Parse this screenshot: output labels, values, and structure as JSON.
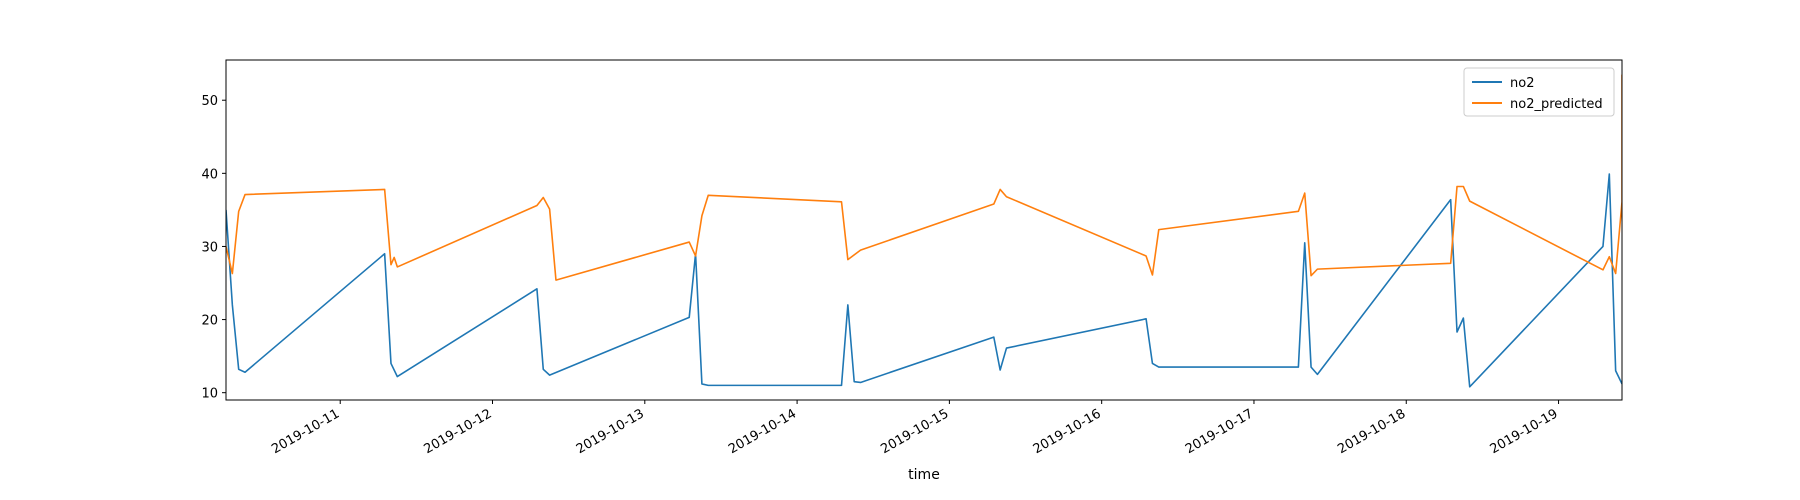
{
  "chart_data": {
    "type": "line",
    "title": "",
    "xlabel": "time",
    "ylabel": "",
    "x_is_date": true,
    "xlim": [
      "2019-10-10 06:00",
      "2019-10-19 10:00"
    ],
    "ylim": [
      9,
      55.5
    ],
    "y_ticks": [
      10,
      20,
      30,
      40,
      50
    ],
    "x_ticks": [
      "2019-10-11",
      "2019-10-12",
      "2019-10-13",
      "2019-10-14",
      "2019-10-15",
      "2019-10-16",
      "2019-10-17",
      "2019-10-18",
      "2019-10-19"
    ],
    "grid": false,
    "legend_position": "top-right",
    "series": [
      {
        "name": "no2",
        "color": "#1f77b4",
        "points": [
          [
            "2019-10-10 06:00",
            35
          ],
          [
            "2019-10-10 07:00",
            22
          ],
          [
            "2019-10-10 08:00",
            13.2
          ],
          [
            "2019-10-10 09:00",
            12.8
          ],
          [
            "2019-10-11 07:00",
            29
          ],
          [
            "2019-10-11 08:00",
            14
          ],
          [
            "2019-10-11 09:00",
            12.2
          ],
          [
            "2019-10-12 07:00",
            24.2
          ],
          [
            "2019-10-12 08:00",
            13.2
          ],
          [
            "2019-10-12 09:00",
            12.4
          ],
          [
            "2019-10-13 07:00",
            20.3
          ],
          [
            "2019-10-13 08:00",
            29
          ],
          [
            "2019-10-13 09:00",
            11.2
          ],
          [
            "2019-10-13 10:00",
            11
          ],
          [
            "2019-10-14 07:00",
            11
          ],
          [
            "2019-10-14 08:00",
            22
          ],
          [
            "2019-10-14 09:00",
            11.5
          ],
          [
            "2019-10-14 10:00",
            11.4
          ],
          [
            "2019-10-15 07:00",
            17.6
          ],
          [
            "2019-10-15 08:00",
            13.1
          ],
          [
            "2019-10-15 09:00",
            16.1
          ],
          [
            "2019-10-16 07:00",
            20.1
          ],
          [
            "2019-10-16 08:00",
            14
          ],
          [
            "2019-10-16 09:00",
            13.5
          ],
          [
            "2019-10-17 07:00",
            13.5
          ],
          [
            "2019-10-17 08:00",
            30.5
          ],
          [
            "2019-10-17 09:00",
            13.5
          ],
          [
            "2019-10-17 10:00",
            12.5
          ],
          [
            "2019-10-18 07:00",
            36.4
          ],
          [
            "2019-10-18 08:00",
            18.3
          ],
          [
            "2019-10-18 09:00",
            20.2
          ],
          [
            "2019-10-18 10:00",
            10.8
          ],
          [
            "2019-10-19 07:00",
            30
          ],
          [
            "2019-10-19 08:00",
            39.9
          ],
          [
            "2019-10-19 09:00",
            13
          ],
          [
            "2019-10-19 10:00",
            11.2
          ]
        ]
      },
      {
        "name": "no2_predicted",
        "color": "#ff7f0e",
        "points": [
          [
            "2019-10-10 06:00",
            30
          ],
          [
            "2019-10-10 07:00",
            26.3
          ],
          [
            "2019-10-10 08:00",
            34.8
          ],
          [
            "2019-10-10 09:00",
            37.1
          ],
          [
            "2019-10-11 07:00",
            37.8
          ],
          [
            "2019-10-11 08:00",
            27.5
          ],
          [
            "2019-10-11 08:30",
            28.5
          ],
          [
            "2019-10-11 09:00",
            27.2
          ],
          [
            "2019-10-12 07:00",
            35.6
          ],
          [
            "2019-10-12 08:00",
            36.7
          ],
          [
            "2019-10-12 09:00",
            35.1
          ],
          [
            "2019-10-12 10:00",
            25.4
          ],
          [
            "2019-10-13 07:00",
            30.6
          ],
          [
            "2019-10-13 08:00",
            28.7
          ],
          [
            "2019-10-13 09:00",
            34.2
          ],
          [
            "2019-10-13 10:00",
            37
          ],
          [
            "2019-10-14 07:00",
            36.1
          ],
          [
            "2019-10-14 08:00",
            28.2
          ],
          [
            "2019-10-14 10:00",
            29.5
          ],
          [
            "2019-10-15 07:00",
            35.8
          ],
          [
            "2019-10-15 08:00",
            37.8
          ],
          [
            "2019-10-15 09:00",
            36.8
          ],
          [
            "2019-10-16 07:00",
            28.7
          ],
          [
            "2019-10-16 08:00",
            26.1
          ],
          [
            "2019-10-16 09:00",
            32.3
          ],
          [
            "2019-10-17 07:00",
            34.8
          ],
          [
            "2019-10-17 08:00",
            37.3
          ],
          [
            "2019-10-17 09:00",
            26
          ],
          [
            "2019-10-17 10:00",
            26.9
          ],
          [
            "2019-10-18 07:00",
            27.7
          ],
          [
            "2019-10-18 08:00",
            38.2
          ],
          [
            "2019-10-18 09:00",
            38.2
          ],
          [
            "2019-10-18 10:00",
            36.2
          ],
          [
            "2019-10-19 07:00",
            26.8
          ],
          [
            "2019-10-19 08:00",
            28.6
          ],
          [
            "2019-10-19 09:00",
            26.3
          ],
          [
            "2019-10-19 10:00",
            36.1
          ],
          [
            "2019-10-19 10:00",
            53.5
          ]
        ]
      }
    ]
  }
}
